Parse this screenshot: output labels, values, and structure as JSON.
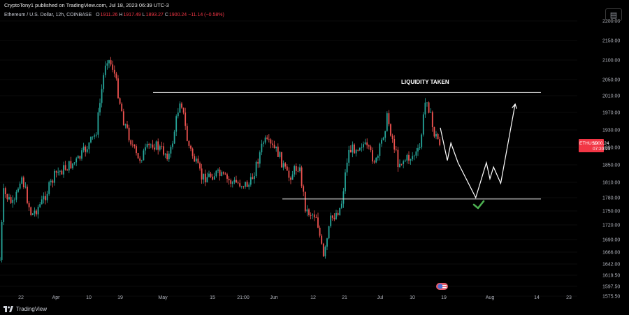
{
  "header": {
    "published_text": "CryptoTony1 published on TradingView.com, Jul 18, 2023 06:39 UTC-3",
    "symbol_title": "Ethereum / U.S. Dollar, 12h, COINBASE",
    "open_label": "O",
    "open_value": "1911.26",
    "high_label": "H",
    "high_value": "1917.49",
    "low_label": "L",
    "low_value": "1893.27",
    "close_label": "C",
    "close_value": "1900.24",
    "change_text": "−11.14 (−0.58%)"
  },
  "price_tag": {
    "symbol": "ETHUSD",
    "price": "1900.24",
    "countdown": "07:20:21",
    "color": "#f23645"
  },
  "annotation": {
    "text": "LIQUIDITY TAKEN"
  },
  "footer": {
    "brand": "TradingView"
  },
  "colors": {
    "background": "#000000",
    "up": "#26a69a",
    "down": "#ef5350",
    "lines": "#e0e0e0",
    "check": "#4caf50"
  },
  "chart_data": {
    "type": "candlestick",
    "symbol": "ETHUSD",
    "timeframe": "12h",
    "exchange": "COINBASE",
    "y_ticks": [
      "2200.00",
      "2150.00",
      "2100.00",
      "2050.00",
      "2010.00",
      "1970.00",
      "1930.00",
      "1890.00",
      "1850.00",
      "1810.00",
      "1780.00",
      "1750.00",
      "1720.00",
      "1690.00",
      "1666.00",
      "1642.00",
      "1619.50",
      "1597.50",
      "1575.50"
    ],
    "x_ticks": [
      "22",
      "Apr",
      "10",
      "19",
      "May",
      "15",
      "21:00",
      "Jun",
      "12",
      "21",
      "Jul",
      "10",
      "19",
      "Aug",
      "14",
      "23"
    ],
    "waypoints": [
      {
        "date": "2023-03-16",
        "price": 1650
      },
      {
        "date": "2023-03-17",
        "price": 1790
      },
      {
        "date": "2023-03-20",
        "price": 1760
      },
      {
        "date": "2023-03-22",
        "price": 1830
      },
      {
        "date": "2023-03-25",
        "price": 1740
      },
      {
        "date": "2023-03-28",
        "price": 1770
      },
      {
        "date": "2023-04-01",
        "price": 1830
      },
      {
        "date": "2023-04-07",
        "price": 1860
      },
      {
        "date": "2023-04-12",
        "price": 1920
      },
      {
        "date": "2023-04-15",
        "price": 2110
      },
      {
        "date": "2023-04-17",
        "price": 2080
      },
      {
        "date": "2023-04-20",
        "price": 1950
      },
      {
        "date": "2023-04-24",
        "price": 1860
      },
      {
        "date": "2023-04-28",
        "price": 1900
      },
      {
        "date": "2023-05-03",
        "price": 1870
      },
      {
        "date": "2023-05-06",
        "price": 2010
      },
      {
        "date": "2023-05-08",
        "price": 1900
      },
      {
        "date": "2023-05-12",
        "price": 1820
      },
      {
        "date": "2023-05-16",
        "price": 1830
      },
      {
        "date": "2023-05-20",
        "price": 1810
      },
      {
        "date": "2023-05-25",
        "price": 1805
      },
      {
        "date": "2023-05-29",
        "price": 1905
      },
      {
        "date": "2023-06-02",
        "price": 1880
      },
      {
        "date": "2023-06-05",
        "price": 1820
      },
      {
        "date": "2023-06-08",
        "price": 1850
      },
      {
        "date": "2023-06-10",
        "price": 1750
      },
      {
        "date": "2023-06-13",
        "price": 1740
      },
      {
        "date": "2023-06-15",
        "price": 1650
      },
      {
        "date": "2023-06-17",
        "price": 1730
      },
      {
        "date": "2023-06-20",
        "price": 1760
      },
      {
        "date": "2023-06-22",
        "price": 1880
      },
      {
        "date": "2023-06-26",
        "price": 1900
      },
      {
        "date": "2023-06-30",
        "price": 1855
      },
      {
        "date": "2023-07-03",
        "price": 1960
      },
      {
        "date": "2023-07-06",
        "price": 1855
      },
      {
        "date": "2023-07-09",
        "price": 1865
      },
      {
        "date": "2023-07-12",
        "price": 1880
      },
      {
        "date": "2023-07-14",
        "price": 2015
      },
      {
        "date": "2023-07-16",
        "price": 1925
      },
      {
        "date": "2023-07-18",
        "price": 1900
      }
    ],
    "resistance_line": {
      "price": 2018
    },
    "support_line": {
      "price": 1777
    },
    "projection_path": [
      {
        "date": "2023-07-18",
        "price": 1935
      },
      {
        "date": "2023-07-20",
        "price": 1860
      },
      {
        "date": "2023-07-21",
        "price": 1900
      },
      {
        "date": "2023-07-23",
        "price": 1855
      },
      {
        "date": "2023-07-28",
        "price": 1780
      },
      {
        "date": "2023-07-31",
        "price": 1855
      },
      {
        "date": "2023-08-01",
        "price": 1818
      },
      {
        "date": "2023-08-02",
        "price": 1845
      },
      {
        "date": "2023-08-04",
        "price": 1808
      },
      {
        "date": "2023-08-08",
        "price": 1990
      }
    ]
  }
}
